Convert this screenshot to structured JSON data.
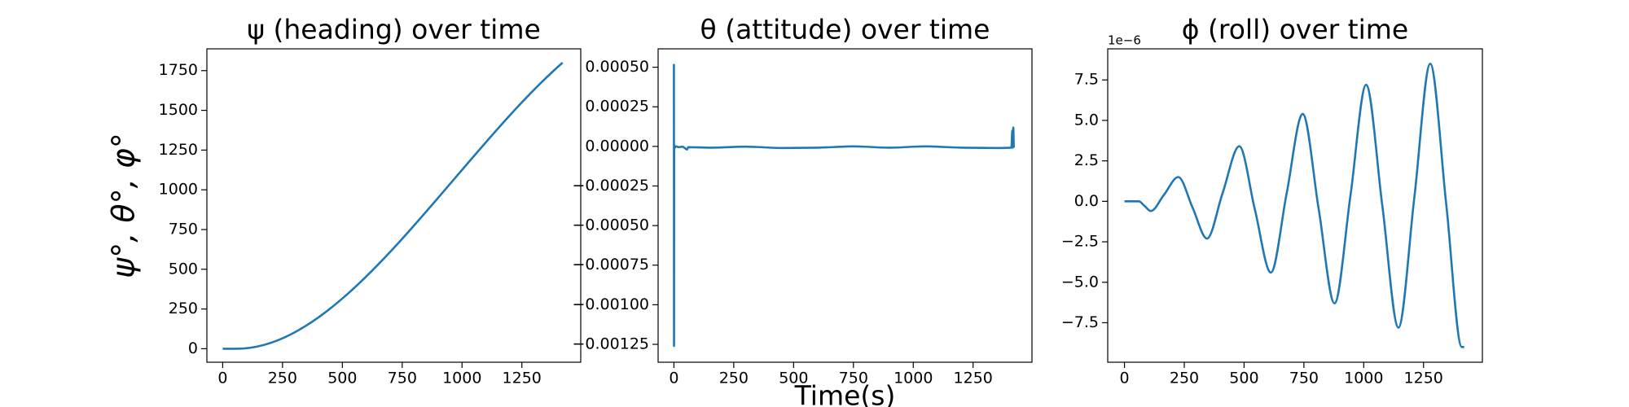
{
  "chart_data": [
    {
      "type": "line",
      "title": "ψ (heading) over time",
      "y_label": "ψ°, θ°, φ°",
      "x": [
        0,
        60,
        1420
      ],
      "values": [
        0,
        0,
        1800
      ],
      "color": "#1f77b4",
      "xlim": [
        -66,
        1496
      ],
      "ylim": [
        -85,
        1887
      ],
      "xticks": [
        0,
        250,
        500,
        750,
        1000,
        1250
      ],
      "yticks": [
        0,
        250,
        500,
        750,
        1000,
        1250,
        1500,
        1750
      ]
    },
    {
      "type": "line",
      "title": "θ (attitude) over time",
      "x_label": "Time(s)",
      "x": [
        0,
        0.5,
        1,
        3,
        8,
        20,
        35,
        45,
        55,
        60,
        150,
        300,
        450,
        600,
        750,
        900,
        1050,
        1200,
        1350,
        1410,
        1414,
        1416,
        1418,
        1420
      ],
      "values": [
        0.00052,
        -0.00126,
        1e-05,
        -1e-05,
        0,
        -5e-06,
        -2e-06,
        -1e-05,
        -2e-05,
        -5e-06,
        -8e-06,
        -2e-06,
        -1e-05,
        -8e-06,
        0,
        -8e-06,
        0,
        -8e-06,
        -1e-05,
        -8e-06,
        0.0001,
        -8e-06,
        0.00012,
        -8e-06
      ],
      "color": "#1f77b4",
      "xlim": [
        -66,
        1496
      ],
      "ylim": [
        -0.001363,
        0.000616
      ],
      "xticks": [
        0,
        250,
        500,
        750,
        1000,
        1250
      ],
      "yticks": [
        {
          "value": 0.0005,
          "label": "0.00050"
        },
        {
          "value": 0.00025,
          "label": "0.00025"
        },
        {
          "value": 0,
          "label": "0.00000"
        },
        {
          "value": -0.00025,
          "label": "−0.00025"
        },
        {
          "value": -0.0005,
          "label": "−0.00050"
        },
        {
          "value": -0.00075,
          "label": "−0.00075"
        },
        {
          "value": -0.001,
          "label": "−0.00100"
        },
        {
          "value": -0.00125,
          "label": "−0.00125"
        }
      ]
    },
    {
      "type": "line",
      "title": "ϕ (roll) over time",
      "y_offset_label": "1e−6",
      "x": [
        0,
        60,
        85,
        110,
        165,
        225,
        285,
        345,
        410,
        480,
        545,
        612,
        678,
        745,
        812,
        878,
        945,
        1010,
        1078,
        1145,
        1212,
        1278,
        1345,
        1410,
        1420
      ],
      "values": [
        0,
        0,
        -0.3,
        -0.6,
        0.4,
        1.5,
        -0.4,
        -2.3,
        0.5,
        3.4,
        -0.5,
        -4.4,
        0.5,
        5.4,
        -0.5,
        -6.3,
        0.4,
        7.2,
        -0.3,
        -7.8,
        0.3,
        8.5,
        -0.2,
        -9.0,
        -9.0
      ],
      "color": "#1f77b4",
      "xlim": [
        -70,
        1496
      ],
      "ylim": [
        -9.94,
        9.42
      ],
      "xticks": [
        0,
        250,
        500,
        750,
        1000,
        1250
      ],
      "yticks": [
        {
          "value": 7.5,
          "label": "7.5"
        },
        {
          "value": 5,
          "label": "5.0"
        },
        {
          "value": 2.5,
          "label": "2.5"
        },
        {
          "value": 0,
          "label": "0.0"
        },
        {
          "value": -2.5,
          "label": "−2.5"
        },
        {
          "value": -5,
          "label": "−5.0"
        },
        {
          "value": -7.5,
          "label": "−7.5"
        }
      ]
    }
  ]
}
